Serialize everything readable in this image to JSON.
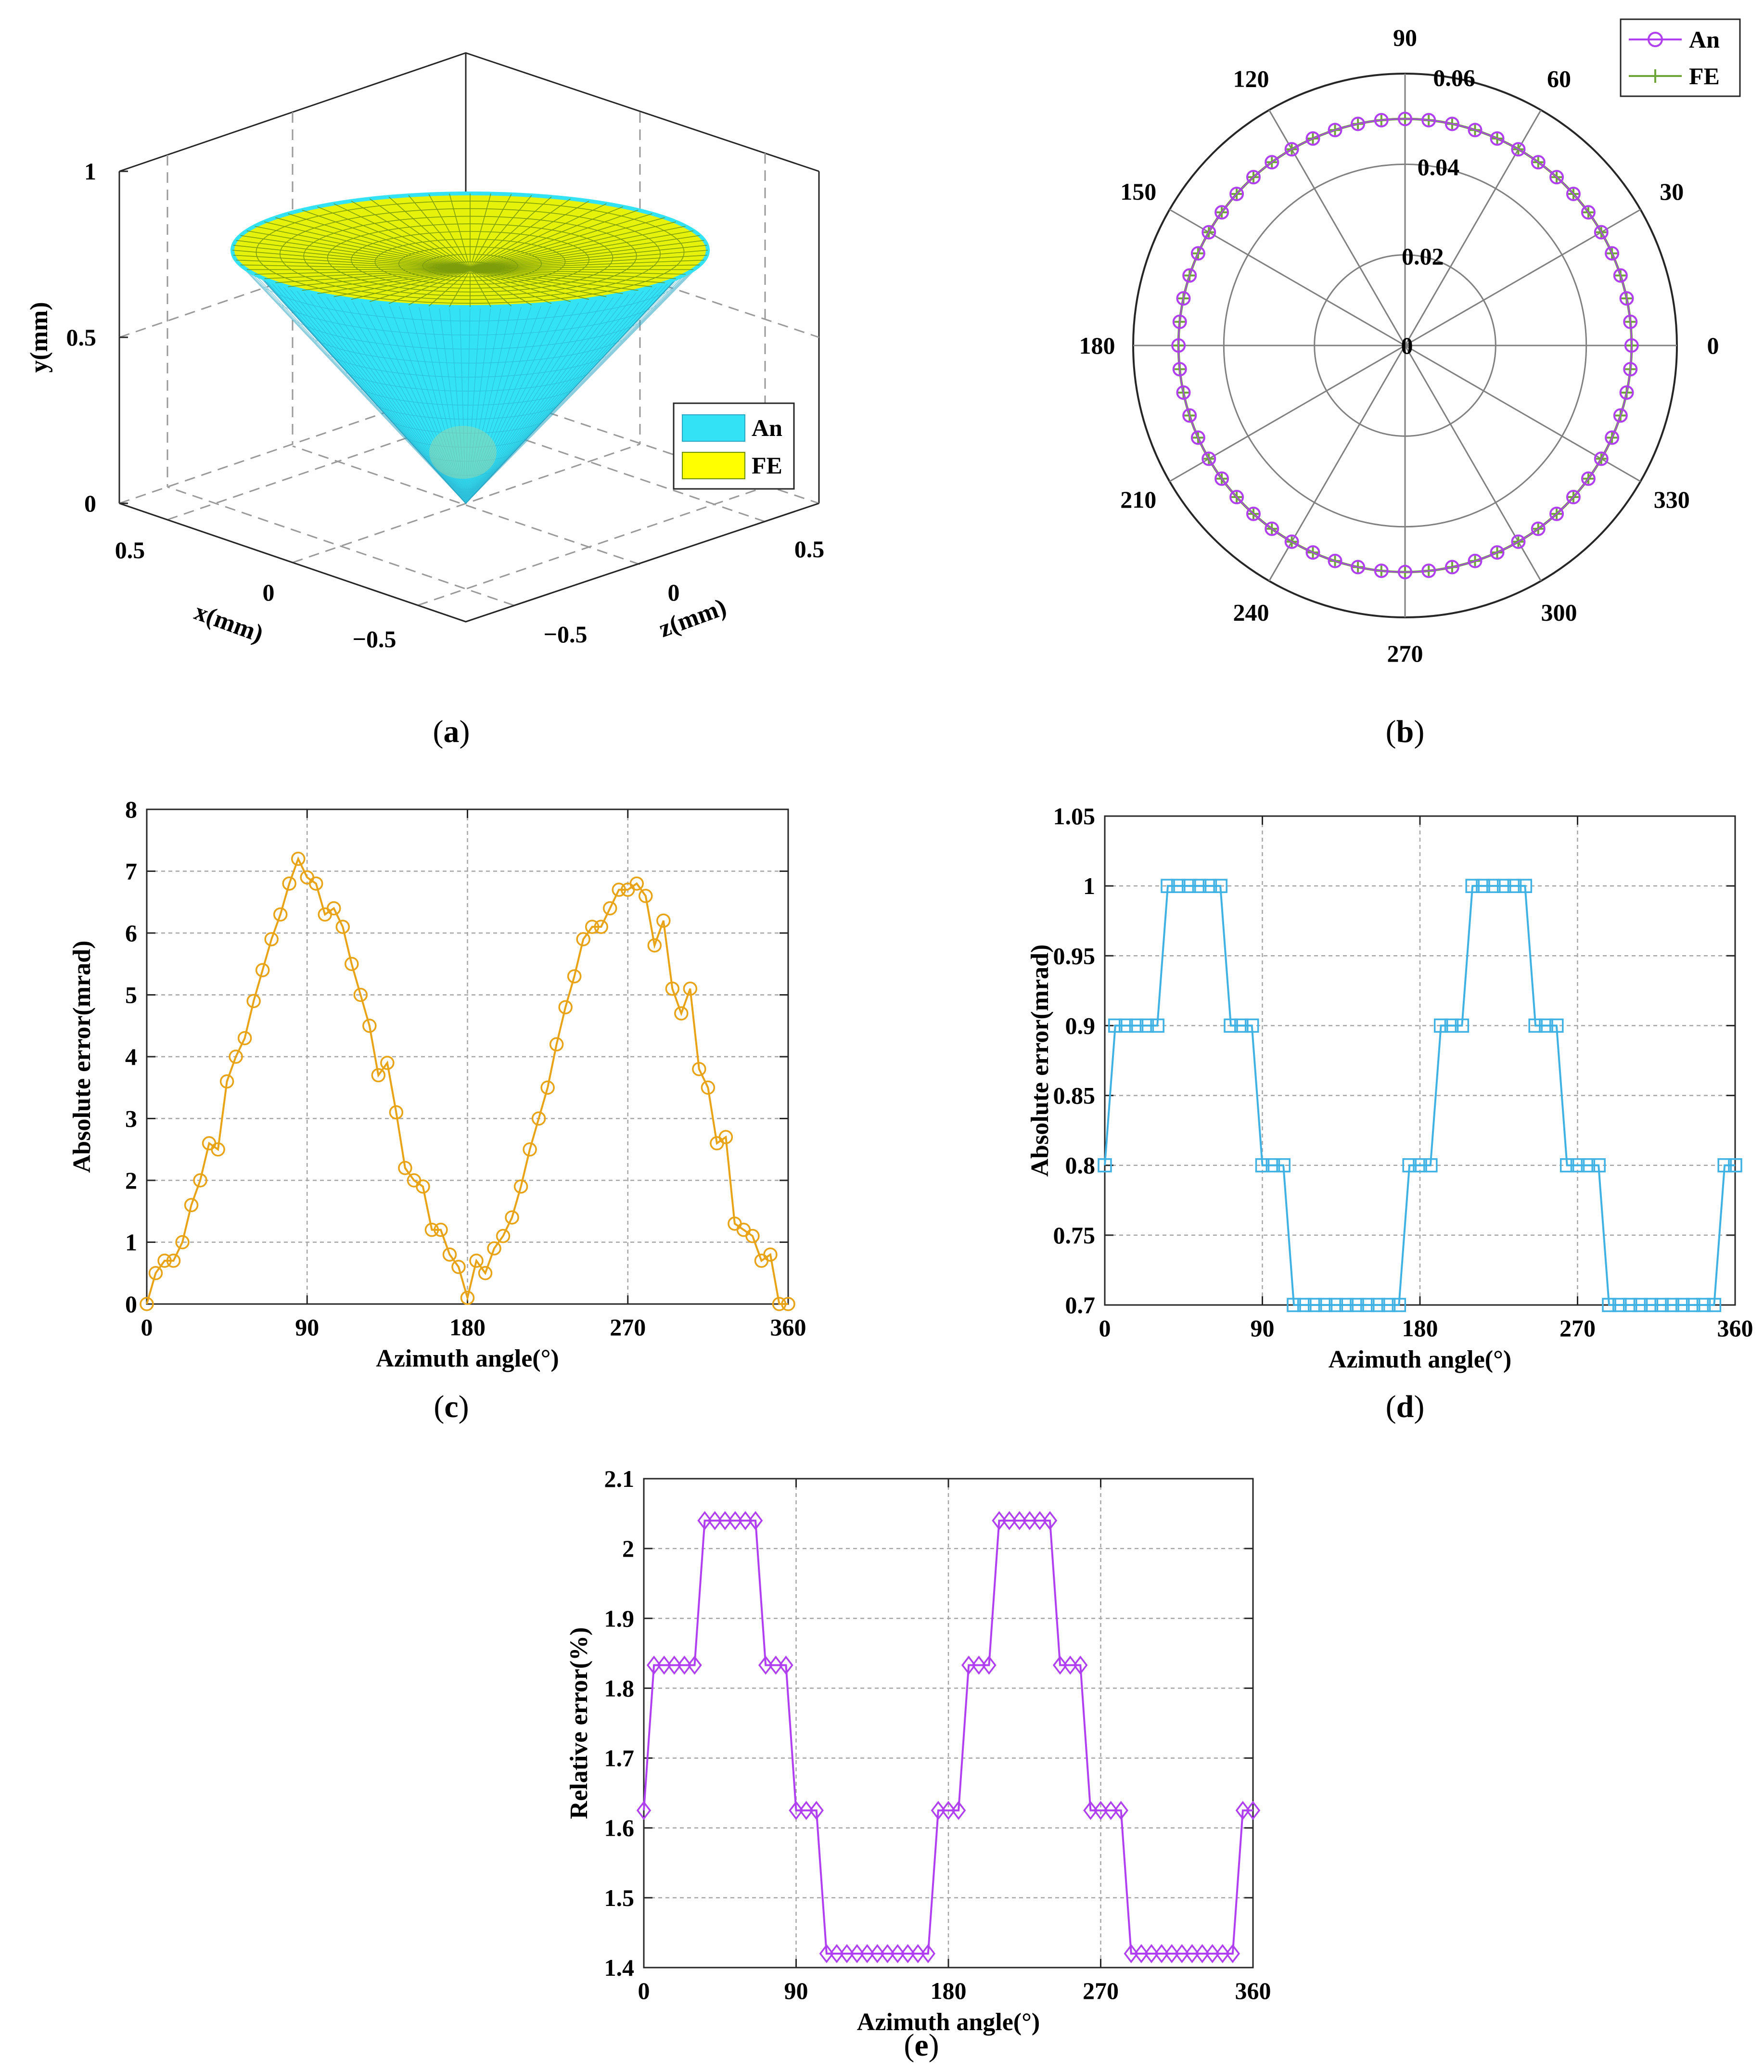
{
  "colors": {
    "cone_an": "#33e2f5",
    "cone_fe": "#e6f20a",
    "mesh_an": "#2aa6c4",
    "mesh_fe": "#6b8f0c",
    "polar_an": "#b03ff2",
    "polar_fe": "#6ea63a",
    "series_c": "#e8a317",
    "series_d": "#3fb1e3",
    "series_e": "#b03ff2",
    "grid": "#a6a6a6"
  },
  "panels": {
    "a": {
      "caption": "(a)",
      "caption_letter": "a",
      "xlabel": "x(mm)",
      "ylabel": "y(mm)",
      "zlabel": "z(mm)",
      "y_ticks": [
        "0",
        "0.5",
        "1"
      ],
      "x_ticks": [
        "0.5",
        "0",
        "−0.5"
      ],
      "z_ticks": [
        "−0.5",
        "0",
        "0.5"
      ],
      "legend": [
        "An",
        "FE"
      ]
    },
    "b": {
      "caption": "(b)",
      "caption_letter": "b",
      "angle_ticks": [
        "0",
        "30",
        "60",
        "90",
        "120",
        "150",
        "180",
        "210",
        "240",
        "270",
        "300",
        "330"
      ],
      "r_ticks": [
        "0",
        "0.02",
        "0.04",
        "0.06"
      ],
      "legend": [
        "An",
        "FE"
      ]
    },
    "c": {
      "caption": "(c)",
      "caption_letter": "c"
    },
    "d": {
      "caption": "(d)",
      "caption_letter": "d"
    },
    "e": {
      "caption": "(e)",
      "caption_letter": "e"
    }
  },
  "chart_data": [
    {
      "id": "a",
      "type": "surface",
      "series": [
        {
          "name": "An"
        },
        {
          "name": "FE"
        }
      ],
      "xlabel": "x(mm)",
      "ylabel": "y(mm)",
      "zlabel": "z(mm)",
      "xlim": [
        -0.5,
        0.5
      ],
      "ylim": [
        0,
        1
      ],
      "zlim": [
        -0.5,
        0.5
      ],
      "cone_apex_y": 0,
      "cone_top_y": 0.75,
      "cone_top_radius": 0.75
    },
    {
      "id": "b",
      "type": "polar",
      "theta_step_deg": 6,
      "rlim": [
        0,
        0.06
      ],
      "series": [
        {
          "name": "An",
          "radius": 0.05
        },
        {
          "name": "FE",
          "radius": 0.05
        }
      ],
      "grid": true,
      "legend": "top-right"
    },
    {
      "id": "c",
      "type": "line",
      "xlabel": "Azimuth angle(°)",
      "ylabel": "Absolute error(mrad)",
      "xlim": [
        0,
        360
      ],
      "ylim": [
        0,
        8
      ],
      "x_ticks": [
        0,
        90,
        180,
        270,
        360
      ],
      "y_ticks": [
        0,
        1,
        2,
        3,
        4,
        5,
        6,
        7,
        8
      ],
      "grid": true,
      "x": [
        0,
        5,
        10,
        15,
        20,
        25,
        30,
        35,
        40,
        45,
        50,
        55,
        60,
        65,
        70,
        75,
        80,
        85,
        90,
        95,
        100,
        105,
        110,
        115,
        120,
        125,
        130,
        135,
        140,
        145,
        150,
        155,
        160,
        165,
        170,
        175,
        180,
        185,
        190,
        195,
        200,
        205,
        210,
        215,
        220,
        225,
        230,
        235,
        240,
        245,
        250,
        255,
        260,
        265,
        270,
        275,
        280,
        285,
        290,
        295,
        300,
        305,
        310,
        315,
        320,
        325,
        330,
        335,
        340,
        345,
        350,
        355,
        360
      ],
      "series": [
        {
          "values": [
            0,
            0.5,
            0.7,
            0.7,
            1.0,
            1.6,
            2.0,
            2.6,
            2.5,
            3.6,
            4.0,
            4.3,
            4.9,
            5.4,
            5.9,
            6.3,
            6.8,
            7.2,
            6.9,
            6.8,
            6.3,
            6.4,
            6.1,
            5.5,
            5.0,
            4.5,
            3.7,
            3.9,
            3.1,
            2.2,
            2.0,
            1.9,
            1.2,
            1.2,
            0.8,
            0.6,
            0.1,
            0.7,
            0.5,
            0.9,
            1.1,
            1.4,
            1.9,
            2.5,
            3.0,
            3.5,
            4.2,
            4.8,
            5.3,
            5.9,
            6.1,
            6.1,
            6.4,
            6.7,
            6.7,
            6.8,
            6.6,
            5.8,
            6.2,
            5.1,
            4.7,
            5.1,
            3.8,
            3.5,
            2.6,
            2.7,
            1.3,
            1.2,
            1.1,
            0.7,
            0.8,
            0.0,
            0.0
          ]
        }
      ]
    },
    {
      "id": "d",
      "type": "line",
      "xlabel": "Azimuth angle(°)",
      "ylabel": "Absolute error(mrad)",
      "xlim": [
        0,
        360
      ],
      "ylim": [
        0.7,
        1.05
      ],
      "x_ticks": [
        0,
        90,
        180,
        270,
        360
      ],
      "y_ticks": [
        0.7,
        0.75,
        0.8,
        0.85,
        0.9,
        0.95,
        1,
        1.05
      ],
      "grid": true,
      "x": [
        0,
        6,
        12,
        18,
        24,
        30,
        36,
        42,
        48,
        54,
        60,
        66,
        72,
        78,
        84,
        90,
        96,
        102,
        108,
        114,
        120,
        126,
        132,
        138,
        144,
        150,
        156,
        162,
        168,
        174,
        180,
        186,
        192,
        198,
        204,
        210,
        216,
        222,
        228,
        234,
        240,
        246,
        252,
        258,
        264,
        270,
        276,
        282,
        288,
        294,
        300,
        306,
        312,
        318,
        324,
        330,
        336,
        342,
        348,
        354,
        360
      ],
      "series": [
        {
          "values": [
            0.8,
            0.9,
            0.9,
            0.9,
            0.9,
            0.9,
            1.0,
            1.0,
            1.0,
            1.0,
            1.0,
            1.0,
            0.9,
            0.9,
            0.9,
            0.8,
            0.8,
            0.8,
            0.7,
            0.7,
            0.7,
            0.7,
            0.7,
            0.7,
            0.7,
            0.7,
            0.7,
            0.7,
            0.7,
            0.8,
            0.8,
            0.8,
            0.9,
            0.9,
            0.9,
            1.0,
            1.0,
            1.0,
            1.0,
            1.0,
            1.0,
            0.9,
            0.9,
            0.9,
            0.8,
            0.8,
            0.8,
            0.8,
            0.7,
            0.7,
            0.7,
            0.7,
            0.7,
            0.7,
            0.7,
            0.7,
            0.7,
            0.7,
            0.7,
            0.8,
            0.8
          ]
        }
      ]
    },
    {
      "id": "e",
      "type": "line",
      "xlabel": "Azimuth angle(°)",
      "ylabel": "Relative error(%)",
      "xlim": [
        0,
        360
      ],
      "ylim": [
        1.4,
        2.1
      ],
      "x_ticks": [
        0,
        90,
        180,
        270,
        360
      ],
      "y_ticks": [
        1.4,
        1.5,
        1.6,
        1.7,
        1.8,
        1.9,
        2,
        2.1
      ],
      "grid": true,
      "x": [
        0,
        6,
        12,
        18,
        24,
        30,
        36,
        42,
        48,
        54,
        60,
        66,
        72,
        78,
        84,
        90,
        96,
        102,
        108,
        114,
        120,
        126,
        132,
        138,
        144,
        150,
        156,
        162,
        168,
        174,
        180,
        186,
        192,
        198,
        204,
        210,
        216,
        222,
        228,
        234,
        240,
        246,
        252,
        258,
        264,
        270,
        276,
        282,
        288,
        294,
        300,
        306,
        312,
        318,
        324,
        330,
        336,
        342,
        348,
        354,
        360
      ],
      "series": [
        {
          "values": [
            1.625,
            1.833,
            1.833,
            1.833,
            1.833,
            1.833,
            2.04,
            2.04,
            2.04,
            2.04,
            2.04,
            2.04,
            1.833,
            1.833,
            1.833,
            1.625,
            1.625,
            1.625,
            1.42,
            1.42,
            1.42,
            1.42,
            1.42,
            1.42,
            1.42,
            1.42,
            1.42,
            1.42,
            1.42,
            1.625,
            1.625,
            1.625,
            1.833,
            1.833,
            1.833,
            2.04,
            2.04,
            2.04,
            2.04,
            2.04,
            2.04,
            1.833,
            1.833,
            1.833,
            1.625,
            1.625,
            1.625,
            1.625,
            1.42,
            1.42,
            1.42,
            1.42,
            1.42,
            1.42,
            1.42,
            1.42,
            1.42,
            1.42,
            1.42,
            1.625,
            1.625
          ]
        }
      ]
    }
  ]
}
